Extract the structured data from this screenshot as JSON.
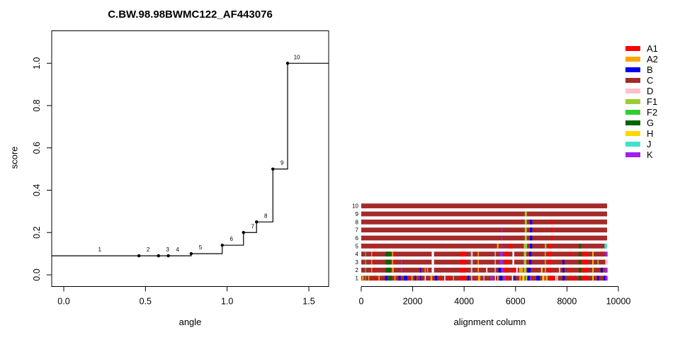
{
  "title": "C.BW.98.98BWMC122_AF443076",
  "colors": {
    "A1": "#FF0000",
    "A2": "#FFA500",
    "B": "#0000EE",
    "C": "#A52A2A",
    "D": "#FFC0CB",
    "F1": "#9ACD32",
    "F2": "#32CD32",
    "G": "#006400",
    "H": "#FFD700",
    "J": "#40E0D0",
    "K": "#A020F0",
    "white": "#FFFFFF",
    "gray": "#BEBEBE",
    "axis": "#000000"
  },
  "legend": {
    "items": [
      {
        "label": "A1",
        "color": "#FF0000"
      },
      {
        "label": "A2",
        "color": "#FFA500"
      },
      {
        "label": "B",
        "color": "#0000EE"
      },
      {
        "label": "C",
        "color": "#A52A2A"
      },
      {
        "label": "D",
        "color": "#FFC0CB"
      },
      {
        "label": "F1",
        "color": "#9ACD32"
      },
      {
        "label": "F2",
        "color": "#32CD32"
      },
      {
        "label": "G",
        "color": "#006400"
      },
      {
        "label": "H",
        "color": "#FFD700"
      },
      {
        "label": "J",
        "color": "#40E0D0"
      },
      {
        "label": "K",
        "color": "#A020F0"
      }
    ]
  },
  "chart_data": [
    {
      "type": "line",
      "step": "after",
      "title": "C.BW.98.98BWMC122_AF443076",
      "xlabel": "angle",
      "ylabel": "score",
      "xlim": [
        -0.07,
        1.62
      ],
      "ylim": [
        -0.06,
        1.15
      ],
      "xticks": [
        "0.0",
        "0.5",
        "1.0",
        "1.5"
      ],
      "xtick_vals": [
        0.0,
        0.5,
        1.0,
        1.5
      ],
      "yticks": [
        "0.0",
        "0.2",
        "0.4",
        "0.6",
        "0.8",
        "1.0"
      ],
      "ytick_vals": [
        0.0,
        0.2,
        0.4,
        0.6,
        0.8,
        1.0
      ],
      "grid": false,
      "points": [
        {
          "label": "1",
          "x": 0.22,
          "y": 0.09,
          "dot": false
        },
        {
          "label": "2",
          "x": 0.46,
          "y": 0.09,
          "dot": true
        },
        {
          "label": "3",
          "x": 0.58,
          "y": 0.09,
          "dot": true
        },
        {
          "label": "4",
          "x": 0.64,
          "y": 0.09,
          "dot": true
        },
        {
          "label": "5",
          "x": 0.78,
          "y": 0.1,
          "dot": true
        },
        {
          "label": "6",
          "x": 0.97,
          "y": 0.14,
          "dot": true
        },
        {
          "label": "7",
          "x": 1.1,
          "y": 0.2,
          "dot": true
        },
        {
          "label": "8",
          "x": 1.18,
          "y": 0.25,
          "dot": true
        },
        {
          "label": "9",
          "x": 1.28,
          "y": 0.5,
          "dot": true
        },
        {
          "label": "10",
          "x": 1.37,
          "y": 1.0,
          "dot": true
        }
      ]
    },
    {
      "type": "bar",
      "orientation": "horizontal",
      "xlabel": "alignment column",
      "xticks": [
        "0",
        "2000",
        "4000",
        "6000",
        "8000",
        "10000"
      ],
      "xtick_vals": [
        0,
        2000,
        4000,
        6000,
        8000,
        10000
      ],
      "xlim": [
        0,
        10000
      ],
      "bar_length": 9560,
      "base_color": "C",
      "rows": [
        {
          "label": "10",
          "segments": []
        },
        {
          "label": "9",
          "segments": [
            [
              6360,
              80,
              "F1"
            ]
          ]
        },
        {
          "label": "8",
          "segments": [
            [
              6360,
              80,
              "F1"
            ],
            [
              6560,
              90,
              "B"
            ],
            [
              7390,
              60,
              "A1"
            ]
          ]
        },
        {
          "label": "7",
          "segments": [
            [
              5450,
              40,
              "K"
            ],
            [
              6360,
              80,
              "F1"
            ],
            [
              6560,
              90,
              "B"
            ],
            [
              7390,
              60,
              "A1"
            ]
          ]
        },
        {
          "label": "6",
          "segments": [
            [
              5450,
              30,
              "K"
            ],
            [
              6360,
              80,
              "F1"
            ],
            [
              6560,
              90,
              "B"
            ],
            [
              7390,
              60,
              "A1"
            ]
          ]
        },
        {
          "label": "5",
          "segments": [
            [
              480,
              40,
              "A1"
            ],
            [
              5280,
              60,
              "A2"
            ],
            [
              5450,
              40,
              "K"
            ],
            [
              5740,
              140,
              "A1"
            ],
            [
              6320,
              130,
              "F1"
            ],
            [
              6560,
              90,
              "B"
            ],
            [
              7140,
              60,
              "F1"
            ],
            [
              7280,
              130,
              "A1"
            ],
            [
              8470,
              80,
              "G"
            ],
            [
              9460,
              100,
              "J"
            ]
          ]
        },
        {
          "label": "4",
          "segments": [
            [
              150,
              40,
              "F2"
            ],
            [
              390,
              35,
              "A2"
            ],
            [
              480,
              40,
              "A1"
            ],
            [
              950,
              200,
              "G"
            ],
            [
              1200,
              40,
              "A2"
            ],
            [
              1290,
              40,
              "A1"
            ],
            [
              2740,
              90,
              "white"
            ],
            [
              3850,
              220,
              "A1"
            ],
            [
              4260,
              80,
              "gray"
            ],
            [
              4530,
              40,
              "A2"
            ],
            [
              5190,
              40,
              "gray"
            ],
            [
              5390,
              110,
              "K"
            ],
            [
              5580,
              150,
              "A1"
            ],
            [
              5880,
              70,
              "white"
            ],
            [
              6320,
              100,
              "F1"
            ],
            [
              6530,
              90,
              "B"
            ],
            [
              7140,
              40,
              "A2"
            ],
            [
              7280,
              130,
              "A1"
            ],
            [
              8110,
              40,
              "A1"
            ],
            [
              8470,
              80,
              "G"
            ],
            [
              8600,
              200,
              "A1"
            ],
            [
              8990,
              45,
              "H"
            ],
            [
              9330,
              40,
              "A1"
            ],
            [
              9490,
              90,
              "K"
            ]
          ]
        },
        {
          "label": "3",
          "segments": [
            [
              150,
              40,
              "F2"
            ],
            [
              390,
              35,
              "A2"
            ],
            [
              480,
              40,
              "A1"
            ],
            [
              950,
              200,
              "G"
            ],
            [
              1200,
              40,
              "A2"
            ],
            [
              1290,
              40,
              "A1"
            ],
            [
              1540,
              50,
              "K"
            ],
            [
              2740,
              90,
              "white"
            ],
            [
              3850,
              220,
              "A1"
            ],
            [
              4260,
              80,
              "gray"
            ],
            [
              4530,
              40,
              "A2"
            ],
            [
              5190,
              40,
              "gray"
            ],
            [
              5390,
              110,
              "K"
            ],
            [
              5580,
              150,
              "A1"
            ],
            [
              5880,
              70,
              "white"
            ],
            [
              6320,
              100,
              "F1"
            ],
            [
              6530,
              90,
              "B"
            ],
            [
              7140,
              40,
              "A2"
            ],
            [
              7280,
              130,
              "A1"
            ],
            [
              7830,
              70,
              "B"
            ],
            [
              8470,
              80,
              "G"
            ],
            [
              8600,
              200,
              "A1"
            ],
            [
              8990,
              45,
              "H"
            ],
            [
              9190,
              40,
              "F1"
            ],
            [
              9490,
              90,
              "D"
            ]
          ]
        },
        {
          "label": "2",
          "segments": [
            [
              150,
              40,
              "F2"
            ],
            [
              390,
              35,
              "A2"
            ],
            [
              480,
              40,
              "A1"
            ],
            [
              950,
              200,
              "G"
            ],
            [
              1200,
              60,
              "A2"
            ],
            [
              1540,
              50,
              "K"
            ],
            [
              2280,
              45,
              "B"
            ],
            [
              2470,
              35,
              "A2"
            ],
            [
              2560,
              35,
              "A2"
            ],
            [
              2740,
              90,
              "white"
            ],
            [
              3850,
              220,
              "A1"
            ],
            [
              4260,
              60,
              "gray"
            ],
            [
              4530,
              40,
              "A2"
            ],
            [
              4860,
              45,
              "white"
            ],
            [
              5190,
              40,
              "gray"
            ],
            [
              5330,
              110,
              "B"
            ],
            [
              5450,
              60,
              "K"
            ],
            [
              5560,
              170,
              "A1"
            ],
            [
              5880,
              120,
              "A1"
            ],
            [
              6030,
              50,
              "white"
            ],
            [
              6140,
              80,
              "A2"
            ],
            [
              6230,
              45,
              "H"
            ],
            [
              6320,
              100,
              "F1"
            ],
            [
              6460,
              130,
              "B"
            ],
            [
              6990,
              60,
              "H"
            ],
            [
              7140,
              45,
              "A2"
            ],
            [
              7280,
              130,
              "A1"
            ],
            [
              7690,
              50,
              "D"
            ],
            [
              7830,
              70,
              "B"
            ],
            [
              8110,
              45,
              "A1"
            ],
            [
              8470,
              80,
              "G"
            ],
            [
              8600,
              200,
              "A1"
            ],
            [
              8990,
              45,
              "H"
            ],
            [
              9310,
              80,
              "B"
            ],
            [
              9480,
              100,
              "K"
            ]
          ]
        },
        {
          "label": "1",
          "segments": [
            [
              30,
              60,
              "A2"
            ],
            [
              150,
              40,
              "F2"
            ],
            [
              270,
              40,
              "A2"
            ],
            [
              480,
              40,
              "A1"
            ],
            [
              670,
              45,
              "A2"
            ],
            [
              930,
              95,
              "B"
            ],
            [
              1050,
              140,
              "G"
            ],
            [
              1290,
              40,
              "A2"
            ],
            [
              1390,
              40,
              "A1"
            ],
            [
              1450,
              80,
              "B"
            ],
            [
              1660,
              130,
              "B"
            ],
            [
              1840,
              45,
              "A1"
            ],
            [
              1950,
              45,
              "A2"
            ],
            [
              2080,
              40,
              "B"
            ],
            [
              2170,
              45,
              "K"
            ],
            [
              2290,
              40,
              "B"
            ],
            [
              2470,
              40,
              "white"
            ],
            [
              2690,
              70,
              "A2"
            ],
            [
              2860,
              95,
              "B"
            ],
            [
              3030,
              110,
              "A1"
            ],
            [
              3230,
              40,
              "white"
            ],
            [
              3350,
              85,
              "A1"
            ],
            [
              3570,
              40,
              "A2"
            ],
            [
              3850,
              220,
              "A1"
            ],
            [
              4130,
              70,
              "B"
            ],
            [
              4270,
              45,
              "gray"
            ],
            [
              4540,
              90,
              "A2"
            ],
            [
              4750,
              40,
              "gray"
            ],
            [
              5030,
              90,
              "K"
            ],
            [
              5200,
              35,
              "white"
            ],
            [
              5290,
              40,
              "gray"
            ],
            [
              5380,
              110,
              "B"
            ],
            [
              5530,
              90,
              "K"
            ],
            [
              5650,
              95,
              "A1"
            ],
            [
              5860,
              40,
              "white"
            ],
            [
              5950,
              45,
              "B"
            ],
            [
              6150,
              60,
              "A2"
            ],
            [
              6260,
              90,
              "H"
            ],
            [
              6390,
              60,
              "F1"
            ],
            [
              6480,
              70,
              "B"
            ],
            [
              6560,
              60,
              "K"
            ],
            [
              6810,
              130,
              "B"
            ],
            [
              7040,
              80,
              "H"
            ],
            [
              7170,
              80,
              "A2"
            ],
            [
              7300,
              160,
              "A1"
            ],
            [
              7550,
              40,
              "white"
            ],
            [
              7610,
              45,
              "D"
            ],
            [
              7830,
              90,
              "B"
            ],
            [
              8110,
              90,
              "A1"
            ],
            [
              8280,
              60,
              "A1"
            ],
            [
              8470,
              80,
              "G"
            ],
            [
              8600,
              220,
              "A1"
            ],
            [
              8990,
              45,
              "H"
            ],
            [
              9180,
              70,
              "B"
            ],
            [
              9430,
              60,
              "B"
            ],
            [
              9500,
              80,
              "K"
            ]
          ]
        }
      ]
    }
  ]
}
